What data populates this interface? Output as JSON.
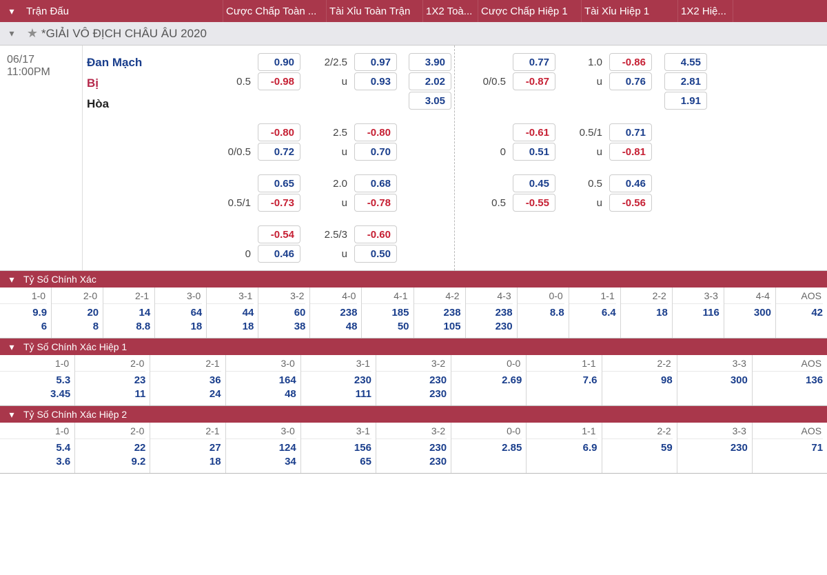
{
  "colors": {
    "brand": "#a9374b",
    "pos": "#1a3e8c",
    "neg": "#c62034"
  },
  "headers": [
    "Trận Đấu",
    "Cược Chấp Toàn ...",
    "Tài Xỉu Toàn Trận",
    "1X2 Toà...",
    "Cược Chấp Hiệp 1",
    "Tài Xỉu Hiệp 1",
    "1X2 Hiệ..."
  ],
  "hdr_w": [
    290,
    150,
    140,
    80,
    150,
    140,
    80
  ],
  "league": "*GIẢI VÔ ĐỊCH CHÂU ÂU 2020",
  "match": {
    "date": "06/17",
    "time": "11:00PM",
    "home": "Đan Mạch",
    "away": "Bị",
    "draw": "Hòa"
  },
  "ft_hdp": [
    {
      "lbl": "",
      "v": [
        "0.90",
        "-0.98"
      ],
      "lbl2": "0.5"
    },
    {
      "lbl": "0/0.5",
      "v": [
        "-0.80",
        "0.72"
      ]
    },
    {
      "lbl": "0.5/1",
      "v": [
        "0.65",
        "-0.73"
      ]
    },
    {
      "lbl": "0",
      "v": [
        "-0.54",
        "0.46"
      ]
    }
  ],
  "ft_ou": [
    {
      "lbl": [
        "2/2.5",
        "u"
      ],
      "v": [
        "0.97",
        "0.93"
      ]
    },
    {
      "lbl": [
        "2.5",
        "u"
      ],
      "v": [
        "-0.80",
        "0.70"
      ]
    },
    {
      "lbl": [
        "2.0",
        "u"
      ],
      "v": [
        "0.68",
        "-0.78"
      ]
    },
    {
      "lbl": [
        "2.5/3",
        "u"
      ],
      "v": [
        "-0.60",
        "0.50"
      ]
    }
  ],
  "ft_1x2": [
    "3.90",
    "2.02",
    "3.05"
  ],
  "h1_hdp": [
    {
      "lbl": "0/0.5",
      "v": [
        "0.77",
        "-0.87"
      ]
    },
    {
      "lbl": "0",
      "v": [
        "-0.61",
        "0.51"
      ]
    },
    {
      "lbl": "0.5",
      "v": [
        "0.45",
        "-0.55"
      ]
    }
  ],
  "h1_ou": [
    {
      "lbl": [
        "1.0",
        "u"
      ],
      "v": [
        "-0.86",
        "0.76"
      ]
    },
    {
      "lbl": [
        "0.5/1",
        "u"
      ],
      "v": [
        "0.71",
        "-0.81"
      ]
    },
    {
      "lbl": [
        "0.5",
        "u"
      ],
      "v": [
        "0.46",
        "-0.56"
      ]
    }
  ],
  "h1_1x2": [
    "4.55",
    "2.81",
    "1.91"
  ],
  "cs_sections": [
    {
      "title": "Tỷ Số Chính Xác",
      "cols": [
        "1-0",
        "2-0",
        "2-1",
        "3-0",
        "3-1",
        "3-2",
        "4-0",
        "4-1",
        "4-2",
        "4-3",
        "0-0",
        "1-1",
        "2-2",
        "3-3",
        "4-4",
        "AOS"
      ],
      "rows": [
        [
          "9.9",
          "20",
          "14",
          "64",
          "44",
          "60",
          "238",
          "185",
          "238",
          "238",
          "8.8",
          "6.4",
          "18",
          "116",
          "300",
          "42"
        ],
        [
          "6",
          "8",
          "8.8",
          "18",
          "18",
          "38",
          "48",
          "50",
          "105",
          "230",
          "",
          "",
          "",
          "",
          "",
          ""
        ]
      ]
    },
    {
      "title": "Tỷ Số Chính Xác Hiệp 1",
      "cols": [
        "1-0",
        "2-0",
        "2-1",
        "3-0",
        "3-1",
        "3-2",
        "0-0",
        "1-1",
        "2-2",
        "3-3",
        "AOS"
      ],
      "rows": [
        [
          "5.3",
          "23",
          "36",
          "164",
          "230",
          "230",
          "2.69",
          "7.6",
          "98",
          "300",
          "136"
        ],
        [
          "3.45",
          "11",
          "24",
          "48",
          "111",
          "230",
          "",
          "",
          "",
          "",
          ""
        ]
      ]
    },
    {
      "title": "Tỷ Số Chính Xác Hiệp 2",
      "cols": [
        "1-0",
        "2-0",
        "2-1",
        "3-0",
        "3-1",
        "3-2",
        "0-0",
        "1-1",
        "2-2",
        "3-3",
        "AOS"
      ],
      "rows": [
        [
          "5.4",
          "22",
          "27",
          "124",
          "156",
          "230",
          "2.85",
          "6.9",
          "59",
          "230",
          "71"
        ],
        [
          "3.6",
          "9.2",
          "18",
          "34",
          "65",
          "230",
          "",
          "",
          "",
          "",
          ""
        ]
      ]
    }
  ]
}
